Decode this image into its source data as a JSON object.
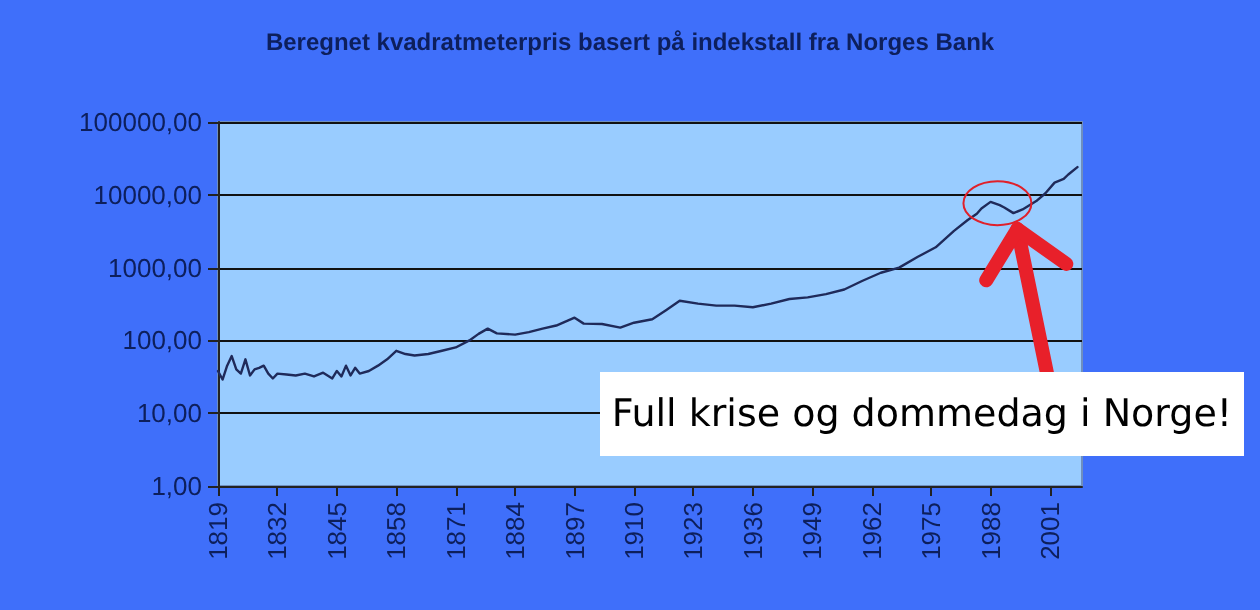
{
  "chart_data": {
    "type": "line",
    "title": "Beregnet kvadratmeterpris basert på indekstall fra Norges Bank",
    "x": [
      1819,
      1820,
      1821,
      1822,
      1823,
      1824,
      1825,
      1826,
      1827,
      1828,
      1829,
      1830,
      1831,
      1832,
      1834,
      1836,
      1838,
      1840,
      1842,
      1844,
      1845,
      1846,
      1847,
      1848,
      1849,
      1850,
      1852,
      1854,
      1856,
      1858,
      1860,
      1862,
      1865,
      1868,
      1871,
      1874,
      1876,
      1878,
      1880,
      1884,
      1887,
      1890,
      1893,
      1897,
      1899,
      1903,
      1907,
      1910,
      1914,
      1917,
      1920,
      1924,
      1928,
      1932,
      1936,
      1940,
      1944,
      1948,
      1952,
      1956,
      1960,
      1964,
      1968,
      1972,
      1976,
      1980,
      1983,
      1985,
      1986,
      1988,
      1990,
      1991,
      1993,
      1995,
      1998,
      2000,
      2002,
      2004,
      2005,
      2007
    ],
    "series": [
      {
        "color": "#1f2a5a",
        "values": [
          38,
          29,
          45,
          61,
          40,
          35,
          55,
          33,
          40,
          42,
          45,
          35,
          30,
          35,
          34,
          33,
          35,
          32,
          36,
          30,
          38,
          32,
          45,
          33,
          42,
          35,
          38,
          45,
          55,
          72,
          65,
          62,
          65,
          72,
          80,
          100,
          123,
          145,
          125,
          120,
          130,
          145,
          160,
          205,
          170,
          168,
          150,
          175,
          195,
          260,
          350,
          320,
          300,
          300,
          285,
          320,
          370,
          390,
          433,
          500,
          660,
          850,
          1000,
          1400,
          1900,
          3200,
          4500,
          5500,
          6500,
          8000,
          7200,
          6700,
          5600,
          6300,
          8200,
          10500,
          14700,
          16500,
          19000,
          24000
        ]
      }
    ],
    "xlim": [
      1819,
      2008
    ],
    "xticks": [
      1819,
      1832,
      1845,
      1858,
      1871,
      1884,
      1897,
      1910,
      1923,
      1936,
      1949,
      1962,
      1975,
      1988,
      2001
    ],
    "log": "y",
    "ylim": [
      1,
      100000
    ],
    "yticks": [
      {
        "value": 1,
        "label": "1,00"
      },
      {
        "value": 10,
        "label": "10,00"
      },
      {
        "value": 100,
        "label": "100,00"
      },
      {
        "value": 1000,
        "label": "1000,00"
      },
      {
        "value": 10000,
        "label": "10000,00"
      },
      {
        "value": 100000,
        "label": "100000,00"
      }
    ],
    "grid": "y",
    "marker": "none",
    "line_style": "solid",
    "annotations": [
      {
        "text": "Full krise og dommedag i Norge!",
        "x": 1993,
        "y": 5600
      }
    ]
  }
}
